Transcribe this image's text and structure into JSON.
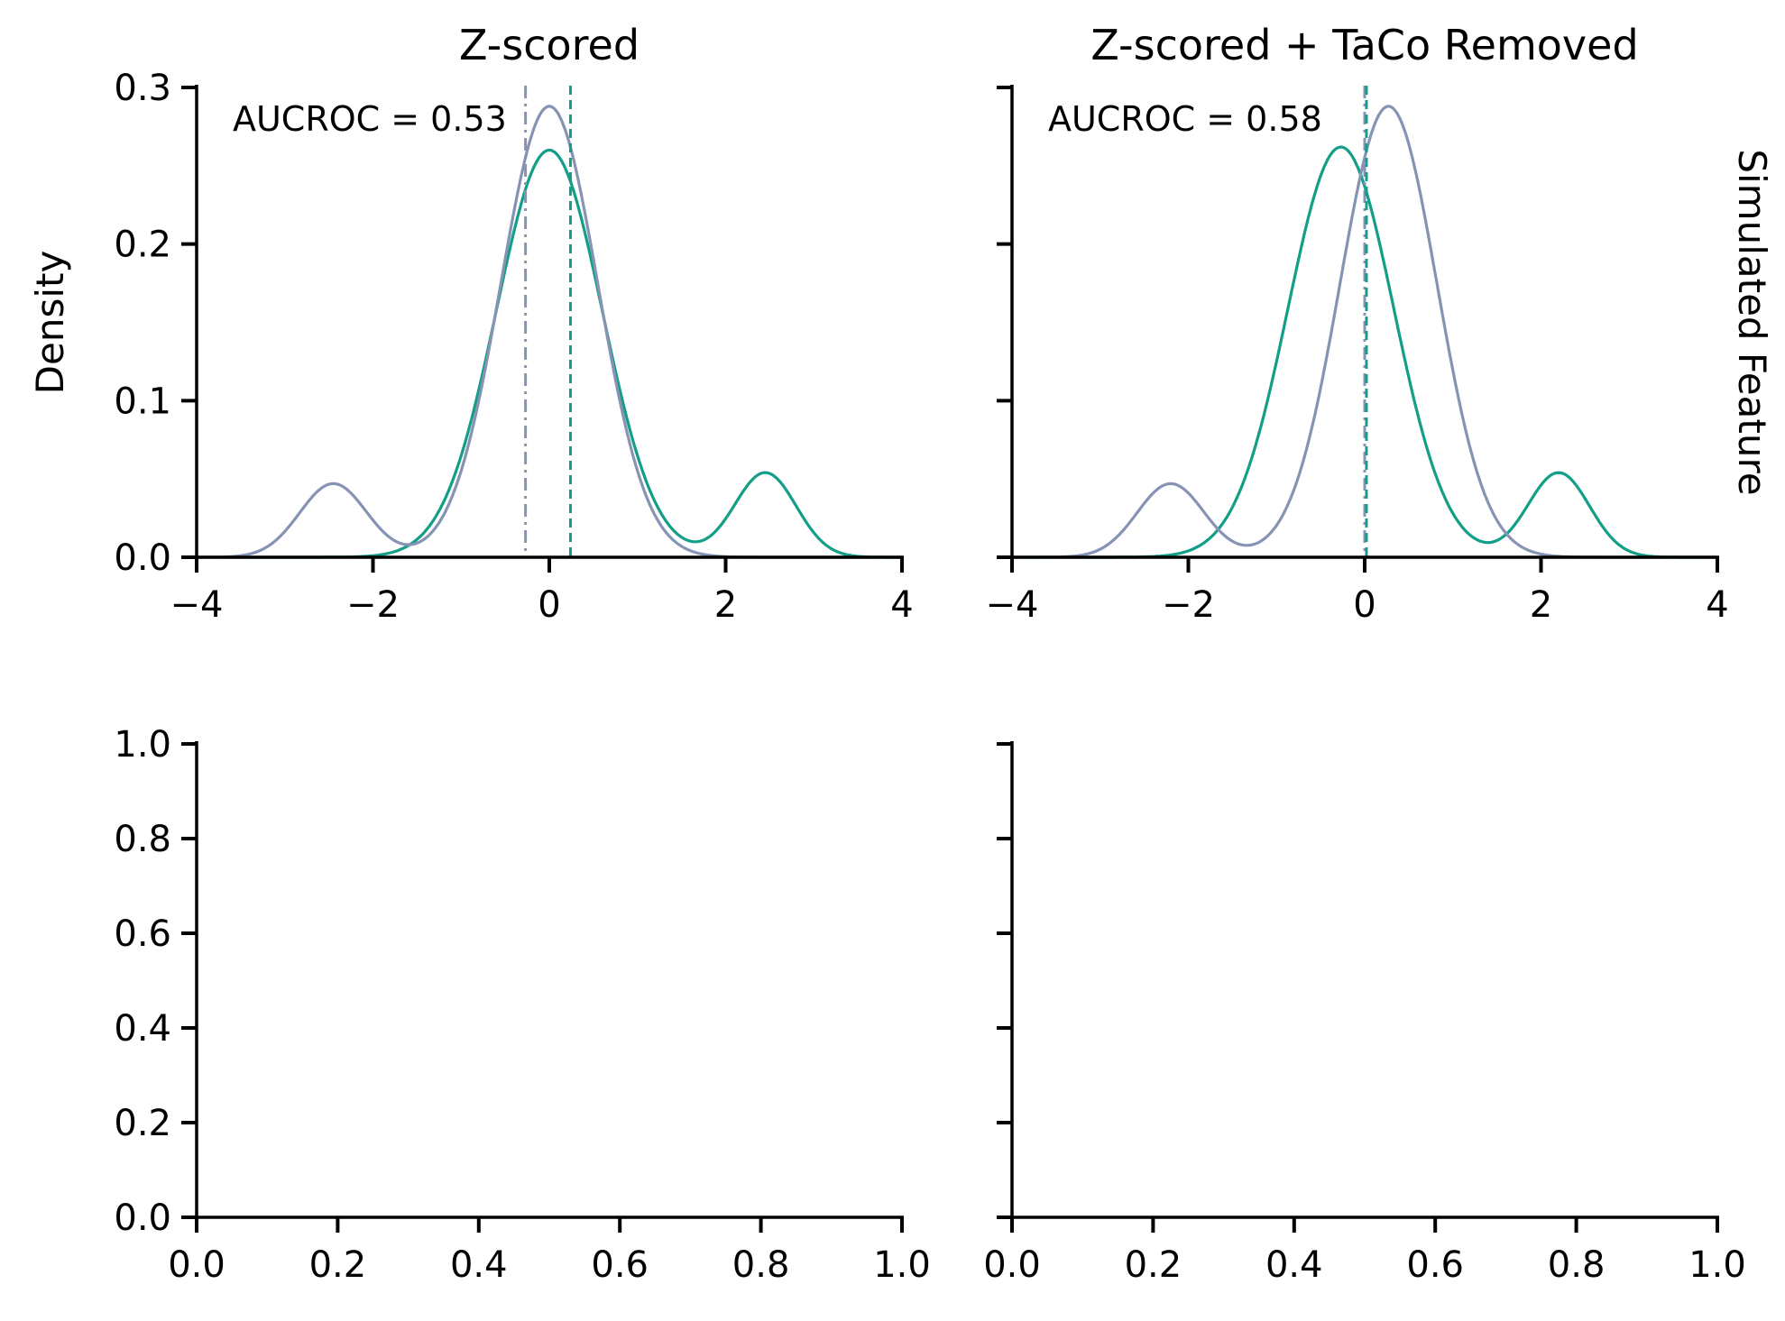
{
  "colors": {
    "teal": "#129e87",
    "slate": "#8793b4",
    "axis": "#000000"
  },
  "chart_data": [
    {
      "type": "line",
      "title": "Z-scored",
      "ylabel": "Density",
      "row_label": "",
      "xlim": [
        -4,
        4
      ],
      "ylim": [
        0,
        0.3
      ],
      "xticks": [
        -4,
        -2,
        0,
        2,
        4
      ],
      "xtick_labels": [
        "−4",
        "−2",
        "0",
        "2",
        "4"
      ],
      "yticks": [
        0.0,
        0.1,
        0.2,
        0.3
      ],
      "ytick_labels": [
        "0.0",
        "0.1",
        "0.2",
        "0.3"
      ],
      "show_ytick_labels": true,
      "annotation": "AUCROC = 0.53",
      "grid": false,
      "series": [
        {
          "color": "#129e87",
          "components": [
            {
              "mu": 0.0,
              "sigma": 0.6,
              "peak": 0.26
            },
            {
              "mu": 2.45,
              "sigma": 0.35,
              "peak": 0.054
            }
          ]
        },
        {
          "color": "#8793b4",
          "components": [
            {
              "mu": 0.0,
              "sigma": 0.55,
              "peak": 0.288
            },
            {
              "mu": -2.45,
              "sigma": 0.38,
              "peak": 0.047
            }
          ]
        }
      ],
      "vlines": [
        {
          "x": -0.27,
          "color": "#8793b4",
          "style": "dashdot"
        },
        {
          "x": 0.24,
          "color": "#129e87",
          "style": "dashed"
        }
      ]
    },
    {
      "type": "line",
      "title": "Z-scored + TaCo Removed",
      "ylabel": "",
      "row_label": "Simulated Feature",
      "xlim": [
        -4,
        4
      ],
      "ylim": [
        0,
        0.3
      ],
      "xticks": [
        -4,
        -2,
        0,
        2,
        4
      ],
      "xtick_labels": [
        "−4",
        "−2",
        "0",
        "2",
        "4"
      ],
      "yticks": [
        0.0,
        0.1,
        0.2,
        0.3
      ],
      "ytick_labels": [
        "",
        "",
        "",
        ""
      ],
      "show_ytick_labels": false,
      "annotation": "AUCROC = 0.58",
      "grid": false,
      "series": [
        {
          "color": "#129e87",
          "components": [
            {
              "mu": -0.27,
              "sigma": 0.6,
              "peak": 0.262
            },
            {
              "mu": 2.2,
              "sigma": 0.35,
              "peak": 0.054
            }
          ]
        },
        {
          "color": "#8793b4",
          "components": [
            {
              "mu": 0.27,
              "sigma": 0.55,
              "peak": 0.288
            },
            {
              "mu": -2.2,
              "sigma": 0.38,
              "peak": 0.047
            }
          ]
        }
      ],
      "vlines": [
        {
          "x": 0.0,
          "color": "#8793b4",
          "style": "dashdot"
        },
        {
          "x": 0.02,
          "color": "#129e87",
          "style": "dashed"
        }
      ]
    },
    {
      "type": "line",
      "title": "",
      "ylabel": "",
      "row_label": "",
      "xlim": [
        0,
        1
      ],
      "ylim": [
        0,
        1
      ],
      "xticks": [
        0.0,
        0.2,
        0.4,
        0.6,
        0.8,
        1.0
      ],
      "xtick_labels": [
        "0.0",
        "0.2",
        "0.4",
        "0.6",
        "0.8",
        "1.0"
      ],
      "yticks": [
        0.0,
        0.2,
        0.4,
        0.6,
        0.8,
        1.0
      ],
      "ytick_labels": [
        "0.0",
        "0.2",
        "0.4",
        "0.6",
        "0.8",
        "1.0"
      ],
      "show_ytick_labels": true,
      "annotation": "",
      "grid": false,
      "series": [],
      "vlines": []
    },
    {
      "type": "line",
      "title": "",
      "ylabel": "",
      "row_label": "",
      "xlim": [
        0,
        1
      ],
      "ylim": [
        0,
        1
      ],
      "xticks": [
        0.0,
        0.2,
        0.4,
        0.6,
        0.8,
        1.0
      ],
      "xtick_labels": [
        "0.0",
        "0.2",
        "0.4",
        "0.6",
        "0.8",
        "1.0"
      ],
      "yticks": [
        0.0,
        0.2,
        0.4,
        0.6,
        0.8,
        1.0
      ],
      "ytick_labels": [
        "",
        "",
        "",
        "",
        "",
        ""
      ],
      "show_ytick_labels": false,
      "annotation": "",
      "grid": false,
      "series": [],
      "vlines": []
    }
  ]
}
